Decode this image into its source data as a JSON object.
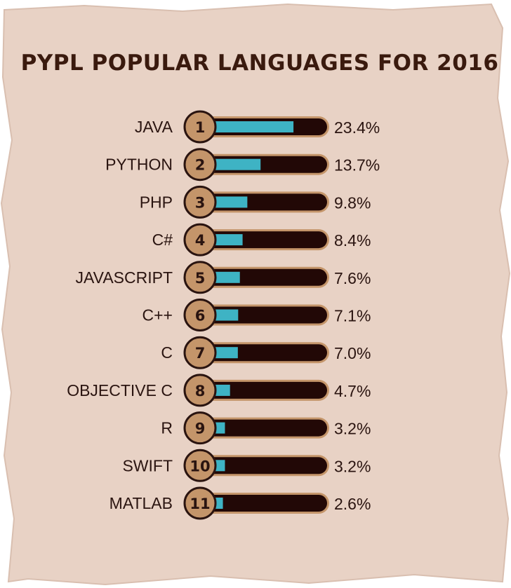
{
  "colors": {
    "paper": "#e8d2c5",
    "paper_edge": "#d9bfb0",
    "title": "#3a1a0e",
    "text": "#2a1410",
    "rank_badge": "#c4956a",
    "rank_badge_stroke": "#2a1410",
    "track": "#220806",
    "track_ring": "#c4956a",
    "fill": "#3eb3c4"
  },
  "chart_data": {
    "type": "bar",
    "title": "PYPL POPULAR LANGUAGES FOR 2016",
    "categories": [
      "JAVA",
      "PYTHON",
      "PHP",
      "C#",
      "JAVASCRIPT",
      "C++",
      "C",
      "OBJECTIVE C",
      "R",
      "SWIFT",
      "MATLAB"
    ],
    "ranks": [
      "1",
      "2",
      "3",
      "4",
      "5",
      "6",
      "7",
      "8",
      "9",
      "10",
      "11"
    ],
    "values": [
      23.4,
      13.7,
      9.8,
      8.4,
      7.6,
      7.1,
      7.0,
      4.7,
      3.2,
      3.2,
      2.6
    ],
    "value_labels": [
      "23.4%",
      "13.7%",
      "9.8%",
      "8.4%",
      "7.6%",
      "7.1%",
      "7.0%",
      "4.7%",
      "3.2%",
      "3.2%",
      "2.6%"
    ],
    "xlim": [
      0,
      30
    ],
    "orientation": "horizontal"
  }
}
